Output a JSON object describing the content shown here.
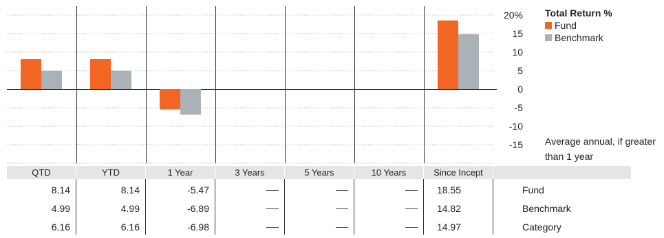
{
  "chart_data": {
    "type": "bar",
    "title": "Total Return %",
    "categories": [
      "QTD",
      "YTD",
      "1 Year",
      "3 Years",
      "5 Years",
      "10 Years",
      "Since Incept"
    ],
    "series": [
      {
        "name": "Fund",
        "values": [
          8.14,
          8.14,
          -5.47,
          null,
          null,
          null,
          18.55
        ],
        "color": "#f26522"
      },
      {
        "name": "Benchmark",
        "values": [
          4.99,
          4.99,
          -6.89,
          null,
          null,
          null,
          14.82
        ],
        "color": "#aab2b8"
      }
    ],
    "ylim": [
      -20,
      20
    ],
    "yticks": [
      20,
      15,
      10,
      5,
      0,
      -5,
      -10,
      -15
    ],
    "ytick_labels": [
      "20%",
      "15",
      "10",
      "5",
      "0",
      "-5",
      "-10",
      "-15"
    ],
    "grid": true,
    "legend": "right",
    "note": "Average annual, if greater than 1 year"
  },
  "table": {
    "headers": [
      "QTD",
      "YTD",
      "1 Year",
      "3 Years",
      "5 Years",
      "10 Years",
      "Since Incept"
    ],
    "rows": [
      {
        "label": "Fund",
        "values": [
          "8.14",
          "8.14",
          "-5.47",
          "—",
          "—",
          "—",
          "18.55"
        ]
      },
      {
        "label": "Benchmark",
        "values": [
          "4.99",
          "4.99",
          "-6.89",
          "—",
          "—",
          "—",
          "14.82"
        ]
      },
      {
        "label": "Category",
        "values": [
          "6.16",
          "6.16",
          "-6.98",
          "—",
          "—",
          "—",
          "14.97"
        ]
      }
    ]
  }
}
